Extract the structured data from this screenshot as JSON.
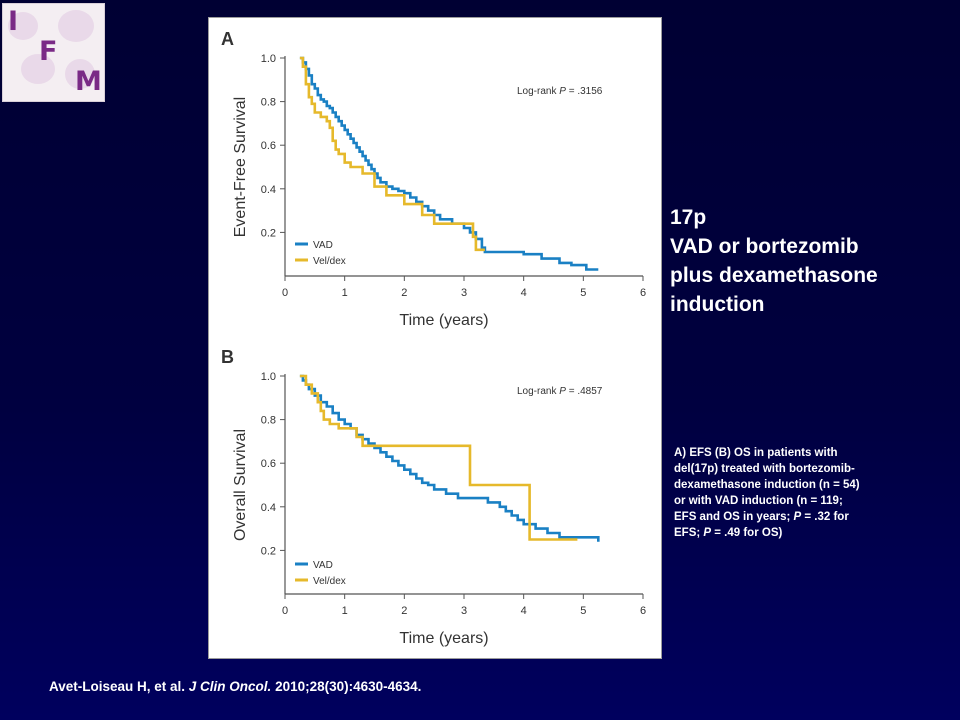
{
  "logo": {
    "letters": [
      "I",
      "F",
      "M"
    ]
  },
  "title": {
    "lines": [
      "17p",
      "VAD or bortezomib",
      "plus dexamethasone",
      "induction"
    ]
  },
  "caption": {
    "part1": "A) EFS (B) OS in patients with del(17p) treated with bortezomib-dexamethasone induction (n = 54) or with VAD induction (n = 119; EFS and OS in years; ",
    "p1": "P",
    "part2": " = .32 for EFS; ",
    "p2": "P",
    "part3": " = .49 for OS)"
  },
  "citation": {
    "authors": "Avet-Loiseau H, et al. ",
    "journal": "J Clin Oncol.",
    "details": " 2010;28(30):4630-4634."
  },
  "colors": {
    "vad": "#1a80c4",
    "veldex": "#e6b92b"
  },
  "chart_data": [
    {
      "type": "line",
      "panel_label": "A",
      "xlabel": "Time (years)",
      "ylabel": "Event-Free Survival",
      "xlim": [
        0,
        6
      ],
      "ylim": [
        0,
        1.0
      ],
      "x_ticks": [
        "0",
        "1",
        "2",
        "3",
        "4",
        "5",
        "6"
      ],
      "y_ticks": [
        "0.2",
        "0.4",
        "0.6",
        "0.8",
        "1.0"
      ],
      "annotation": {
        "prefix": "Log-rank ",
        "p": "P",
        "value": " = .3156"
      },
      "legend": [
        "VAD",
        "Vel/dex"
      ],
      "series": [
        {
          "name": "VAD",
          "step_points": [
            [
              0.25,
              1.0
            ],
            [
              0.3,
              0.98
            ],
            [
              0.35,
              0.95
            ],
            [
              0.4,
              0.92
            ],
            [
              0.45,
              0.88
            ],
            [
              0.5,
              0.86
            ],
            [
              0.55,
              0.83
            ],
            [
              0.6,
              0.81
            ],
            [
              0.65,
              0.8
            ],
            [
              0.7,
              0.78
            ],
            [
              0.75,
              0.77
            ],
            [
              0.8,
              0.75
            ],
            [
              0.85,
              0.73
            ],
            [
              0.9,
              0.71
            ],
            [
              0.95,
              0.69
            ],
            [
              1.0,
              0.67
            ],
            [
              1.05,
              0.65
            ],
            [
              1.1,
              0.63
            ],
            [
              1.15,
              0.61
            ],
            [
              1.2,
              0.59
            ],
            [
              1.25,
              0.57
            ],
            [
              1.3,
              0.55
            ],
            [
              1.35,
              0.53
            ],
            [
              1.4,
              0.51
            ],
            [
              1.45,
              0.49
            ],
            [
              1.5,
              0.47
            ],
            [
              1.55,
              0.45
            ],
            [
              1.6,
              0.43
            ],
            [
              1.7,
              0.41
            ],
            [
              1.8,
              0.4
            ],
            [
              1.9,
              0.39
            ],
            [
              2.0,
              0.38
            ],
            [
              2.1,
              0.36
            ],
            [
              2.2,
              0.34
            ],
            [
              2.3,
              0.32
            ],
            [
              2.4,
              0.3
            ],
            [
              2.5,
              0.28
            ],
            [
              2.6,
              0.26
            ],
            [
              2.8,
              0.24
            ],
            [
              3.0,
              0.22
            ],
            [
              3.1,
              0.2
            ],
            [
              3.2,
              0.17
            ],
            [
              3.3,
              0.13
            ],
            [
              3.35,
              0.11
            ],
            [
              4.0,
              0.1
            ],
            [
              4.3,
              0.08
            ],
            [
              4.6,
              0.06
            ],
            [
              4.8,
              0.05
            ],
            [
              5.05,
              0.03
            ],
            [
              5.25,
              0.03
            ]
          ]
        },
        {
          "name": "Vel/dex",
          "step_points": [
            [
              0.25,
              1.0
            ],
            [
              0.3,
              0.96
            ],
            [
              0.35,
              0.88
            ],
            [
              0.4,
              0.82
            ],
            [
              0.45,
              0.79
            ],
            [
              0.5,
              0.75
            ],
            [
              0.6,
              0.73
            ],
            [
              0.7,
              0.71
            ],
            [
              0.75,
              0.68
            ],
            [
              0.8,
              0.62
            ],
            [
              0.85,
              0.58
            ],
            [
              0.9,
              0.56
            ],
            [
              1.0,
              0.52
            ],
            [
              1.1,
              0.5
            ],
            [
              1.3,
              0.47
            ],
            [
              1.5,
              0.41
            ],
            [
              1.7,
              0.37
            ],
            [
              2.0,
              0.33
            ],
            [
              2.3,
              0.28
            ],
            [
              2.5,
              0.24
            ],
            [
              3.1,
              0.24
            ],
            [
              3.15,
              0.18
            ],
            [
              3.2,
              0.12
            ],
            [
              3.35,
              0.12
            ]
          ]
        }
      ]
    },
    {
      "type": "line",
      "panel_label": "B",
      "xlabel": "Time (years)",
      "ylabel": "Overall Survival",
      "xlim": [
        0,
        6
      ],
      "ylim": [
        0,
        1.0
      ],
      "x_ticks": [
        "0",
        "1",
        "2",
        "3",
        "4",
        "5",
        "6"
      ],
      "y_ticks": [
        "0.2",
        "0.4",
        "0.6",
        "0.8",
        "1.0"
      ],
      "annotation": {
        "prefix": "Log-rank ",
        "p": "P",
        "value": " = .4857"
      },
      "legend": [
        "VAD",
        "Vel/dex"
      ],
      "series": [
        {
          "name": "VAD",
          "step_points": [
            [
              0.25,
              1.0
            ],
            [
              0.3,
              0.98
            ],
            [
              0.35,
              0.96
            ],
            [
              0.4,
              0.94
            ],
            [
              0.5,
              0.91
            ],
            [
              0.6,
              0.88
            ],
            [
              0.7,
              0.86
            ],
            [
              0.8,
              0.83
            ],
            [
              0.9,
              0.8
            ],
            [
              1.0,
              0.78
            ],
            [
              1.1,
              0.76
            ],
            [
              1.2,
              0.73
            ],
            [
              1.3,
              0.71
            ],
            [
              1.4,
              0.69
            ],
            [
              1.5,
              0.67
            ],
            [
              1.6,
              0.65
            ],
            [
              1.7,
              0.63
            ],
            [
              1.8,
              0.61
            ],
            [
              1.9,
              0.59
            ],
            [
              2.0,
              0.57
            ],
            [
              2.1,
              0.55
            ],
            [
              2.2,
              0.53
            ],
            [
              2.3,
              0.51
            ],
            [
              2.4,
              0.5
            ],
            [
              2.5,
              0.48
            ],
            [
              2.7,
              0.46
            ],
            [
              2.9,
              0.44
            ],
            [
              3.2,
              0.44
            ],
            [
              3.4,
              0.42
            ],
            [
              3.6,
              0.4
            ],
            [
              3.7,
              0.38
            ],
            [
              3.8,
              0.36
            ],
            [
              3.9,
              0.34
            ],
            [
              4.0,
              0.32
            ],
            [
              4.2,
              0.3
            ],
            [
              4.4,
              0.28
            ],
            [
              4.6,
              0.26
            ],
            [
              5.0,
              0.26
            ],
            [
              5.15,
              0.26
            ],
            [
              5.25,
              0.24
            ]
          ]
        },
        {
          "name": "Vel/dex",
          "step_points": [
            [
              0.25,
              1.0
            ],
            [
              0.35,
              0.96
            ],
            [
              0.45,
              0.92
            ],
            [
              0.55,
              0.88
            ],
            [
              0.6,
              0.84
            ],
            [
              0.65,
              0.8
            ],
            [
              0.75,
              0.78
            ],
            [
              0.9,
              0.76
            ],
            [
              1.2,
              0.72
            ],
            [
              1.3,
              0.68
            ],
            [
              3.1,
              0.5
            ],
            [
              4.1,
              0.25
            ],
            [
              4.9,
              0.25
            ]
          ]
        }
      ]
    }
  ]
}
